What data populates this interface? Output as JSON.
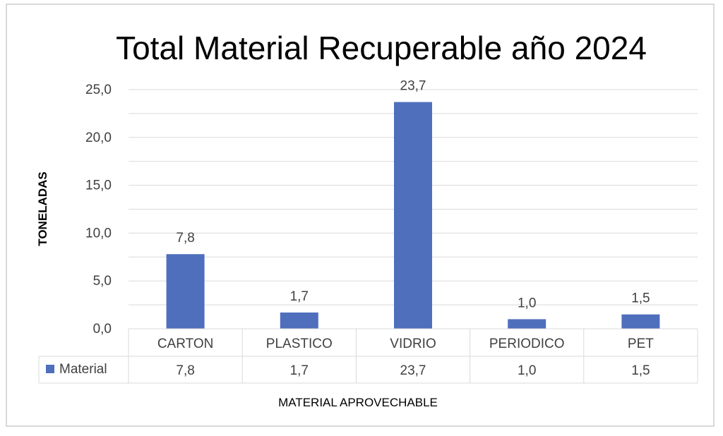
{
  "chart_data": {
    "type": "bar",
    "title": "Total Material Recuperable año 2024",
    "xlabel": "MATERIAL APROVECHABLE",
    "ylabel": "TONELADAS",
    "categories": [
      "CARTON",
      "PLASTICO",
      "VIDRIO",
      "PERIODICO",
      "PET"
    ],
    "series": [
      {
        "name": "Material",
        "values": [
          7.8,
          1.7,
          23.7,
          1.0,
          1.5
        ],
        "labels": [
          "7,8",
          "1,7",
          "23,7",
          "1,0",
          "1,5"
        ],
        "color": "#4f6fbd"
      }
    ],
    "ylim": [
      0,
      25
    ],
    "yticks": [
      "0,0",
      "5,0",
      "10,0",
      "15,0",
      "20,0",
      "25,0"
    ],
    "grid": true,
    "data_table": true
  }
}
